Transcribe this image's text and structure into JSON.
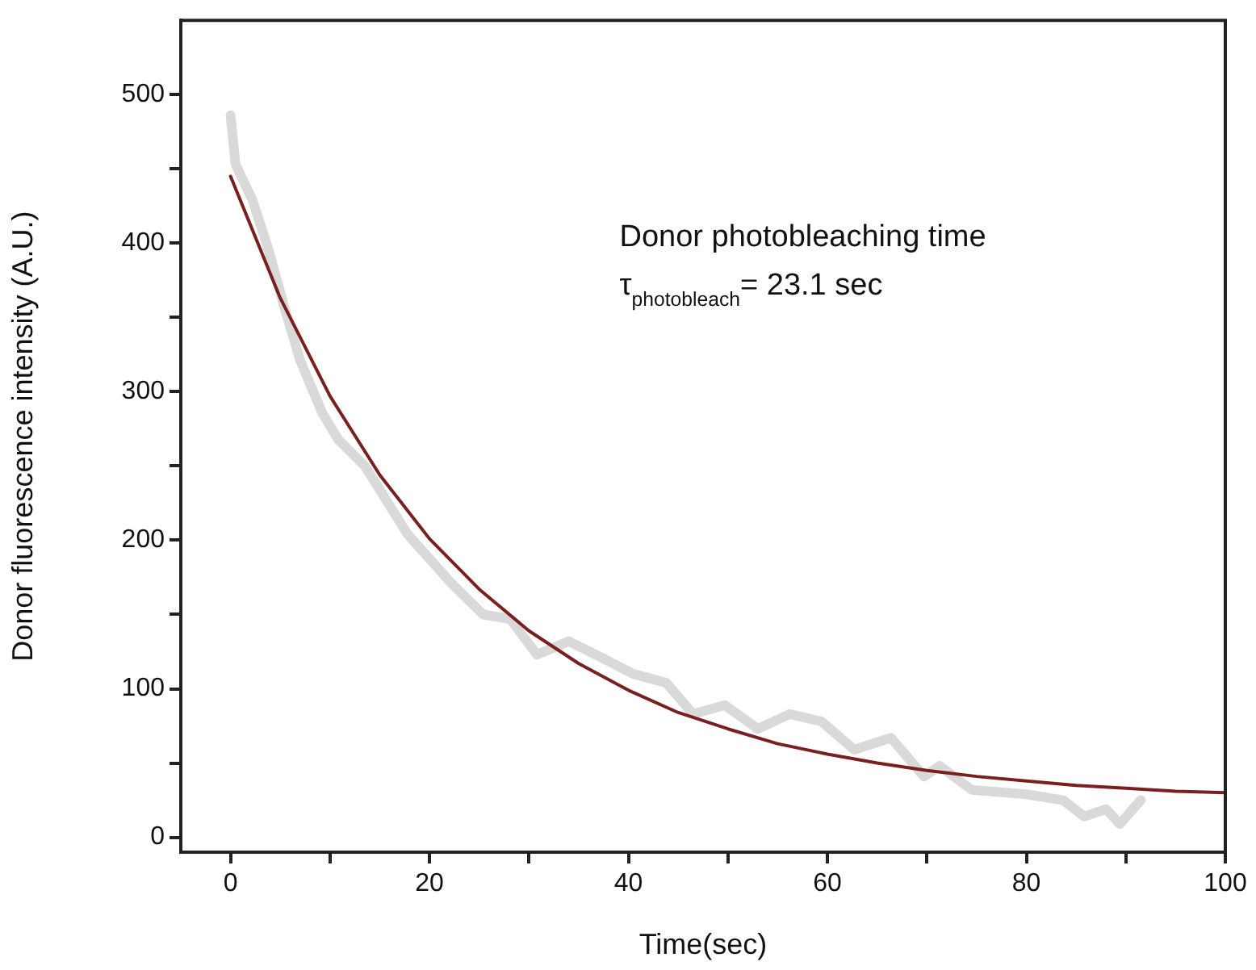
{
  "chart_data": {
    "type": "line",
    "xlabel": "Time(sec)",
    "ylabel": "Donor fluorescence intensity (A.U.)",
    "annotations": [
      "Donor photobleaching time",
      "τ$_{photobleach}$= 23.1 sec"
    ],
    "xlim": [
      -5,
      100
    ],
    "xticks": [
      0,
      {
        "value": 10,
        "label": null
      },
      20,
      {
        "value": 30,
        "label": null
      },
      40,
      {
        "value": 50,
        "label": null
      },
      60,
      {
        "value": 70,
        "label": null
      },
      80,
      {
        "value": 90,
        "label": null
      },
      100
    ],
    "ylim": [
      -10,
      550
    ],
    "yticks": [
      0,
      {
        "value": 50,
        "label": null
      },
      100,
      {
        "value": 150,
        "label": null
      },
      200,
      {
        "value": 250,
        "label": null
      },
      300,
      {
        "value": 350,
        "label": null
      },
      400,
      {
        "value": 450,
        "label": null
      },
      500
    ],
    "grid": false,
    "legend": false,
    "marker": "none",
    "line_style": "solid",
    "series": [
      {
        "color": "#d9d9d9",
        "x": [
          0,
          0.5,
          2.2,
          3.8,
          5.4,
          7,
          9.2,
          10.8,
          13.5,
          17.8,
          22.2,
          25.4,
          28.1,
          30.8,
          34,
          37.3,
          40.5,
          43.8,
          46.5,
          49.7,
          53,
          56.2,
          59.4,
          62.7,
          66.4,
          69.7,
          71.3,
          74.5,
          80,
          83.7,
          85.8,
          88,
          89.4,
          91.5
        ],
        "values": [
          486,
          453,
          429,
          396,
          357,
          321,
          286,
          268,
          250,
          204,
          171,
          150,
          147,
          123,
          132,
          121,
          110,
          104,
          83,
          89,
          73,
          83,
          78,
          59,
          67,
          41,
          48,
          32,
          29,
          25,
          14,
          19,
          9,
          25
        ]
      },
      {
        "color": "#7a1f1f",
        "x": [
          0,
          5,
          10,
          15,
          20,
          25,
          30,
          35,
          40,
          45,
          50,
          55,
          60,
          65,
          70,
          75,
          80,
          85,
          90,
          95,
          100
        ],
        "values": [
          445,
          363,
          297,
          244,
          201,
          167,
          139,
          117,
          99,
          84,
          73,
          63,
          56,
          50,
          45,
          41,
          38,
          35,
          33,
          31,
          30
        ]
      }
    ]
  }
}
